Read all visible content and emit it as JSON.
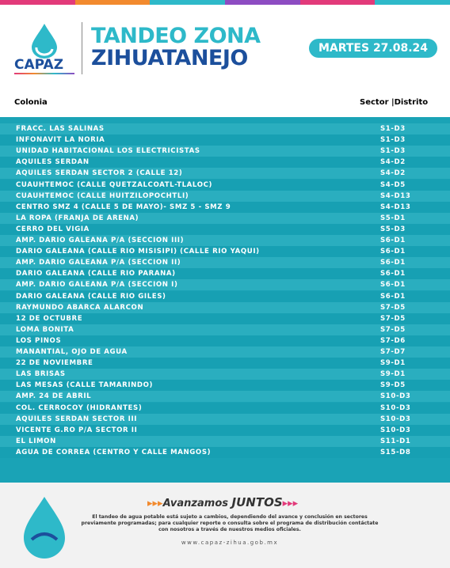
{
  "header": {
    "logo": "CAPAZ",
    "title_line1": "TANDEO ZONA",
    "title_line2": "ZIHUATANEJO",
    "date": "MARTES 27.08.24"
  },
  "table": {
    "columns": [
      "Colonia",
      "Sector |Distrito"
    ],
    "rows": [
      [
        "FRACC. LAS SALINAS",
        "S1-D3"
      ],
      [
        "INFONAVIT LA NORIA",
        "S1-D3"
      ],
      [
        "UNIDAD HABITACIONAL LOS ELECTRICISTAS",
        "S1-D3"
      ],
      [
        "AQUILES SERDAN",
        "S4-D2"
      ],
      [
        "AQUILES SERDAN SECTOR 2 (CALLE 12)",
        "S4-D2"
      ],
      [
        "CUAUHTEMOC (CALLE QUETZALCOATL-TLALOC)",
        "S4-D5"
      ],
      [
        "CUAUHTEMOC (CALLE HUITZILOPOCHTLI)",
        "S4-D13"
      ],
      [
        "CENTRO SMZ 4 (CALLE 5 DE MAYO)- SMZ 5 - SMZ 9",
        "S4-D13"
      ],
      [
        "LA ROPA (FRANJA DE ARENA)",
        "S5-D1"
      ],
      [
        "CERRO DEL VIGIA",
        "S5-D3"
      ],
      [
        "AMP. DARIO GALEANA P/A (SECCION III)",
        "S6-D1"
      ],
      [
        "DARIO GALEANA (CALLE RIO MISISIPI) (CALLE RIO YAQUI)",
        "S6-D1"
      ],
      [
        "AMP. DARIO GALEANA P/A (SECCION II)",
        "S6-D1"
      ],
      [
        "DARIO GALEANA (CALLE RIO PARANA)",
        "S6-D1"
      ],
      [
        "AMP. DARIO GALEANA P/A (SECCION I)",
        "S6-D1"
      ],
      [
        "DARIO GALEANA (CALLE RIO GILES)",
        "S6-D1"
      ],
      [
        "RAYMUNDO ABARCA ALARCON",
        "S7-D5"
      ],
      [
        "12 DE OCTUBRE",
        "S7-D5"
      ],
      [
        "LOMA BONITA",
        "S7-D5"
      ],
      [
        "LOS PINOS",
        "S7-D6"
      ],
      [
        "MANANTIAL, OJO DE AGUA",
        "S7-D7"
      ],
      [
        "22 DE NOVIEMBRE",
        "S9-D1"
      ],
      [
        "LAS BRISAS",
        "S9-D1"
      ],
      [
        "LAS MESAS (CALLE TAMARINDO)",
        "S9-D5"
      ],
      [
        "AMP. 24 DE ABRIL",
        "S10-D3"
      ],
      [
        "COL. CERROCOY (HIDRANTES)",
        "S10-D3"
      ],
      [
        "AQUILES SERDAN SECTOR III",
        "S10-D3"
      ],
      [
        "VICENTE G.RO P/A SECTOR II",
        "S10-D3"
      ],
      [
        "EL LIMON",
        "S11-D1"
      ],
      [
        "AGUA DE CORREA (CENTRO Y CALLE MANGOS)",
        "S15-D8"
      ]
    ]
  },
  "footer": {
    "slogan_1": "Avanzamos",
    "slogan_2": "JUNTOS",
    "notice": "El tandeo de agua potable está sujeto a cambios, dependiendo del avance y conclusión en sectores previamente programadas; para cualquier reporte o consulta sobre el programa de distribución contáctate con nosotros a través de nuestros medios oficiales.",
    "website": "www.capaz-zihua.gob.mx"
  }
}
